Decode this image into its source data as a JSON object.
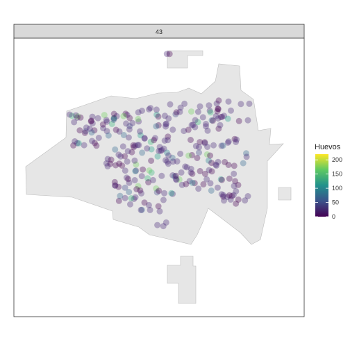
{
  "facet": {
    "label": "43"
  },
  "legend": {
    "title": "Huevos",
    "ticks": [
      "0",
      "50",
      "100",
      "150",
      "200"
    ],
    "tick_values": [
      0,
      50,
      100,
      150,
      200
    ],
    "range": [
      0,
      220
    ],
    "palette": [
      "#440154",
      "#3b528b",
      "#21918c",
      "#5ec962",
      "#fde725"
    ]
  },
  "map": {
    "fill_color": "#e6e6e6",
    "border_color": "#bdbdbd",
    "panel_border": "#333333",
    "strip_fill": "#d9d9d9"
  },
  "chart_data": {
    "type": "scatter",
    "title": "",
    "color_variable": "Huevos",
    "color_range": [
      0,
      220
    ],
    "point_alpha": 0.35,
    "points": []
  }
}
